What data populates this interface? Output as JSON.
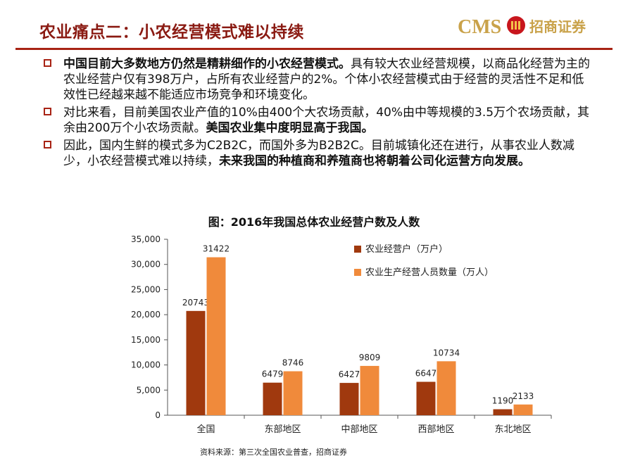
{
  "header": {
    "title": "农业痛点二：小农经营模式难以持续",
    "logo_text": "CMS",
    "logo_cn": "招商证券"
  },
  "bullets": [
    {
      "parts": [
        {
          "text": "中国目前大多数地方仍然是精耕细作的小农经营模式。",
          "bold": true
        },
        {
          "text": "具有较大农业经营规模，以商品化经营为主的农业经营户仅有398万户，占所有农业经营户的2%。个体小农经营模式由于经营的灵活性不足和低效性已经越来越不能适应市场竞争和环境变化。",
          "bold": false
        }
      ]
    },
    {
      "parts": [
        {
          "text": "对比来看，目前美国农业产值的10%由400个大农场贡献，40%由中等规模的3.5万个农场贡献，其余由200万个小农场贡献。",
          "bold": false
        },
        {
          "text": "美国农业集中度明显高于我国。",
          "bold": true
        }
      ]
    },
    {
      "parts": [
        {
          "text": "因此，国内生鲜的模式多为C2B2C，而国外多为B2B2C。目前城镇化还在进行，从事农业人数减少，小农经营模式难以持续，",
          "bold": false
        },
        {
          "text": "未来我国的种植商和养殖商也将朝着公司化运营方向发展。",
          "bold": true
        }
      ]
    }
  ],
  "chart_title": "图：2016年我国总体农业经营户数及人数",
  "source": "资料来源：第三次全国农业普查，招商证券",
  "chart_data": {
    "type": "bar",
    "categories": [
      "全国",
      "东部地区",
      "中部地区",
      "西部地区",
      "东北地区"
    ],
    "series": [
      {
        "name": "农业经营户（万户）",
        "values": [
          20743,
          6479,
          6427,
          6647,
          1190
        ],
        "color": "#a0390e"
      },
      {
        "name": "农业生产经营人员数量（万人）",
        "values": [
          31422,
          8746,
          9809,
          10734,
          2133
        ],
        "color": "#f08a3b"
      }
    ],
    "ylim": [
      0,
      35000
    ],
    "yticks": [
      0,
      5000,
      10000,
      15000,
      20000,
      25000,
      30000,
      35000
    ],
    "ytick_labels": [
      "0",
      "5,000",
      "10,000",
      "15,000",
      "20,000",
      "25,000",
      "30,000",
      "35,000"
    ],
    "legend": "top-right",
    "grid": false
  }
}
